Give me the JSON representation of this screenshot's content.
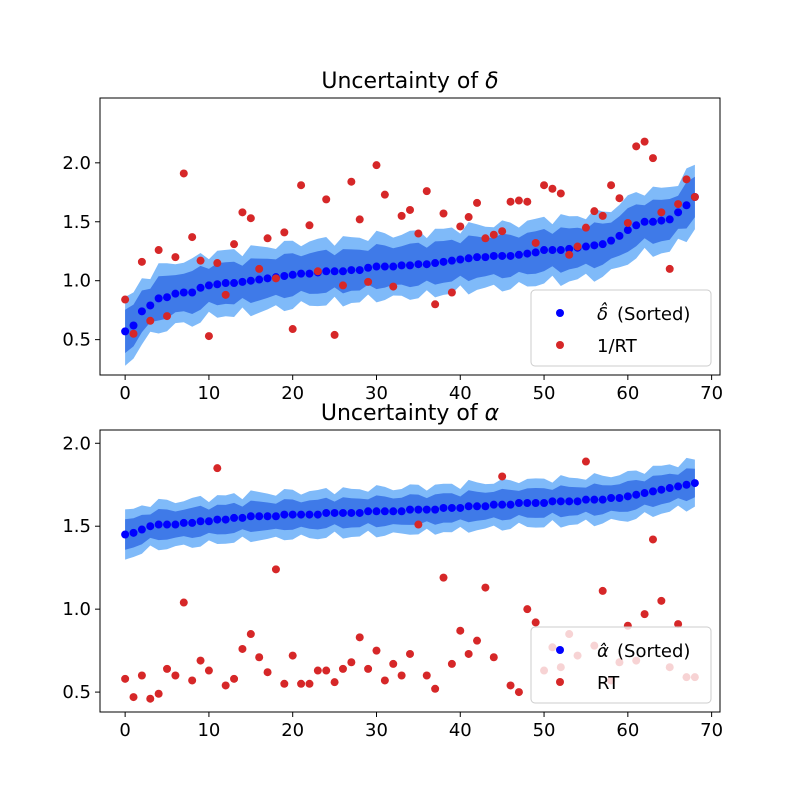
{
  "figure": {
    "background": "#ffffff"
  },
  "colors": {
    "outer_band": "#7fbaf9",
    "inner_band": "#3f7ae8",
    "sorted_points": "#0000ff",
    "red_points": "#d62728",
    "legend_frame": "#cccccc"
  },
  "chart_data": [
    {
      "type": "scatter",
      "title_prefix": "Uncertainty of ",
      "title_symbol": "δ",
      "xlim": [
        -3,
        71
      ],
      "ylim": [
        0.2,
        2.55
      ],
      "xticks": [
        0,
        10,
        20,
        30,
        40,
        50,
        60,
        70
      ],
      "yticks": [
        0.5,
        1.0,
        1.5,
        2.0
      ],
      "ytick_labels": [
        "0.5",
        "1.0",
        "1.5",
        "2.0"
      ],
      "legend_position": "lower right",
      "series": [
        {
          "name": "δ̂ (Sorted)",
          "legend_label": "(Sorted)",
          "legend_symbol": "δ̂",
          "kind": "points_with_bands",
          "x_start": 0,
          "values": [
            0.57,
            0.62,
            0.74,
            0.79,
            0.85,
            0.86,
            0.89,
            0.9,
            0.9,
            0.94,
            0.96,
            0.97,
            0.98,
            0.98,
            0.99,
            1.0,
            1.01,
            1.02,
            1.03,
            1.04,
            1.05,
            1.06,
            1.06,
            1.07,
            1.08,
            1.08,
            1.08,
            1.09,
            1.09,
            1.11,
            1.12,
            1.12,
            1.12,
            1.13,
            1.13,
            1.14,
            1.14,
            1.15,
            1.16,
            1.17,
            1.18,
            1.19,
            1.2,
            1.2,
            1.21,
            1.21,
            1.21,
            1.22,
            1.23,
            1.24,
            1.26,
            1.26,
            1.26,
            1.27,
            1.28,
            1.29,
            1.3,
            1.31,
            1.34,
            1.38,
            1.43,
            1.47,
            1.5,
            1.5,
            1.51,
            1.52,
            1.58,
            1.64,
            1.71
          ],
          "inner_halfwidth": 0.17,
          "outer_halfwidth": 0.27
        },
        {
          "name": "1/RT",
          "legend_label": "1/RT",
          "kind": "points",
          "points": [
            [
              0,
              0.84
            ],
            [
              1,
              0.55
            ],
            [
              2,
              1.16
            ],
            [
              3,
              0.66
            ],
            [
              4,
              1.26
            ],
            [
              5,
              0.7
            ],
            [
              6,
              1.2
            ],
            [
              7,
              1.91
            ],
            [
              8,
              1.37
            ],
            [
              9,
              1.17
            ],
            [
              10,
              0.53
            ],
            [
              11,
              1.15
            ],
            [
              12,
              0.88
            ],
            [
              13,
              1.31
            ],
            [
              14,
              1.58
            ],
            [
              15,
              1.53
            ],
            [
              16,
              1.1
            ],
            [
              17,
              1.36
            ],
            [
              18,
              1.02
            ],
            [
              19,
              1.41
            ],
            [
              20,
              0.59
            ],
            [
              21,
              1.81
            ],
            [
              22,
              1.47
            ],
            [
              23,
              1.08
            ],
            [
              24,
              1.69
            ],
            [
              25,
              0.54
            ],
            [
              26,
              0.96
            ],
            [
              27,
              1.84
            ],
            [
              28,
              1.52
            ],
            [
              29,
              0.99
            ],
            [
              30,
              1.98
            ],
            [
              31,
              1.73
            ],
            [
              32,
              0.95
            ],
            [
              33,
              1.55
            ],
            [
              34,
              1.6
            ],
            [
              35,
              1.4
            ],
            [
              36,
              1.76
            ],
            [
              37,
              0.8
            ],
            [
              38,
              1.57
            ],
            [
              39,
              0.9
            ],
            [
              40,
              1.46
            ],
            [
              41,
              1.54
            ],
            [
              42,
              1.66
            ],
            [
              43,
              1.36
            ],
            [
              44,
              1.39
            ],
            [
              45,
              1.42
            ],
            [
              46,
              1.67
            ],
            [
              47,
              1.68
            ],
            [
              48,
              1.67
            ],
            [
              49,
              1.32
            ],
            [
              50,
              1.81
            ],
            [
              51,
              1.78
            ],
            [
              52,
              1.74
            ],
            [
              53,
              1.22
            ],
            [
              54,
              1.29
            ],
            [
              55,
              1.45
            ],
            [
              56,
              1.59
            ],
            [
              57,
              1.55
            ],
            [
              58,
              1.81
            ],
            [
              59,
              1.7
            ],
            [
              60,
              1.49
            ],
            [
              61,
              2.14
            ],
            [
              62,
              2.18
            ],
            [
              63,
              2.04
            ],
            [
              64,
              1.58
            ],
            [
              65,
              1.1
            ],
            [
              66,
              1.65
            ],
            [
              67,
              1.86
            ],
            [
              68,
              1.71
            ]
          ]
        }
      ]
    },
    {
      "type": "scatter",
      "title_prefix": "Uncertainty of ",
      "title_symbol": "α",
      "xlim": [
        -3,
        71
      ],
      "ylim": [
        0.38,
        2.08
      ],
      "xticks": [
        0,
        10,
        20,
        30,
        40,
        50,
        60,
        70
      ],
      "yticks": [
        0.5,
        1.0,
        1.5,
        2.0
      ],
      "ytick_labels": [
        "0.5",
        "1.0",
        "1.5",
        "2.0"
      ],
      "legend_position": "lower right",
      "series": [
        {
          "name": "α̂ (Sorted)",
          "legend_label": "(Sorted)",
          "legend_symbol": "α̂",
          "kind": "points_with_bands",
          "x_start": 0,
          "values": [
            1.45,
            1.46,
            1.48,
            1.5,
            1.51,
            1.51,
            1.51,
            1.52,
            1.52,
            1.53,
            1.53,
            1.54,
            1.54,
            1.55,
            1.55,
            1.56,
            1.56,
            1.56,
            1.56,
            1.57,
            1.57,
            1.57,
            1.57,
            1.57,
            1.58,
            1.58,
            1.58,
            1.58,
            1.58,
            1.59,
            1.59,
            1.59,
            1.59,
            1.59,
            1.6,
            1.6,
            1.6,
            1.6,
            1.61,
            1.61,
            1.61,
            1.62,
            1.62,
            1.62,
            1.63,
            1.63,
            1.63,
            1.64,
            1.64,
            1.64,
            1.64,
            1.65,
            1.65,
            1.65,
            1.65,
            1.66,
            1.66,
            1.66,
            1.67,
            1.67,
            1.68,
            1.69,
            1.7,
            1.71,
            1.72,
            1.73,
            1.74,
            1.75,
            1.76
          ],
          "inner_halfwidth": 0.085,
          "outer_halfwidth": 0.14
        },
        {
          "name": "RT",
          "legend_label": "RT",
          "kind": "points",
          "points": [
            [
              0,
              0.58
            ],
            [
              1,
              0.47
            ],
            [
              2,
              0.6
            ],
            [
              3,
              0.46
            ],
            [
              4,
              0.49
            ],
            [
              5,
              0.64
            ],
            [
              6,
              0.6
            ],
            [
              7,
              1.04
            ],
            [
              8,
              0.57
            ],
            [
              9,
              0.69
            ],
            [
              10,
              0.63
            ],
            [
              11,
              1.85
            ],
            [
              12,
              0.54
            ],
            [
              13,
              0.58
            ],
            [
              14,
              0.76
            ],
            [
              15,
              0.85
            ],
            [
              16,
              0.71
            ],
            [
              17,
              0.62
            ],
            [
              18,
              1.24
            ],
            [
              19,
              0.55
            ],
            [
              20,
              0.72
            ],
            [
              21,
              0.55
            ],
            [
              22,
              0.55
            ],
            [
              23,
              0.63
            ],
            [
              24,
              0.63
            ],
            [
              25,
              0.56
            ],
            [
              26,
              0.64
            ],
            [
              27,
              0.68
            ],
            [
              28,
              0.83
            ],
            [
              29,
              0.64
            ],
            [
              30,
              0.75
            ],
            [
              31,
              0.57
            ],
            [
              32,
              0.67
            ],
            [
              33,
              0.6
            ],
            [
              34,
              0.73
            ],
            [
              35,
              1.51
            ],
            [
              36,
              0.6
            ],
            [
              37,
              0.52
            ],
            [
              38,
              1.19
            ],
            [
              39,
              0.67
            ],
            [
              40,
              0.87
            ],
            [
              41,
              0.73
            ],
            [
              42,
              0.81
            ],
            [
              43,
              1.13
            ],
            [
              44,
              0.71
            ],
            [
              45,
              1.8
            ],
            [
              46,
              0.54
            ],
            [
              47,
              0.5
            ],
            [
              48,
              1.0
            ],
            [
              49,
              0.92
            ],
            [
              50,
              0.63
            ],
            [
              51,
              0.77
            ],
            [
              52,
              0.65
            ],
            [
              53,
              0.85
            ],
            [
              54,
              0.72
            ],
            [
              55,
              1.89
            ],
            [
              56,
              0.78
            ],
            [
              57,
              1.11
            ],
            [
              58,
              0.57
            ],
            [
              59,
              0.68
            ],
            [
              60,
              0.9
            ],
            [
              61,
              0.69
            ],
            [
              62,
              0.97
            ],
            [
              63,
              1.42
            ],
            [
              64,
              1.05
            ],
            [
              65,
              0.65
            ],
            [
              66,
              0.91
            ],
            [
              67,
              0.59
            ],
            [
              68,
              0.59
            ]
          ]
        }
      ]
    }
  ]
}
